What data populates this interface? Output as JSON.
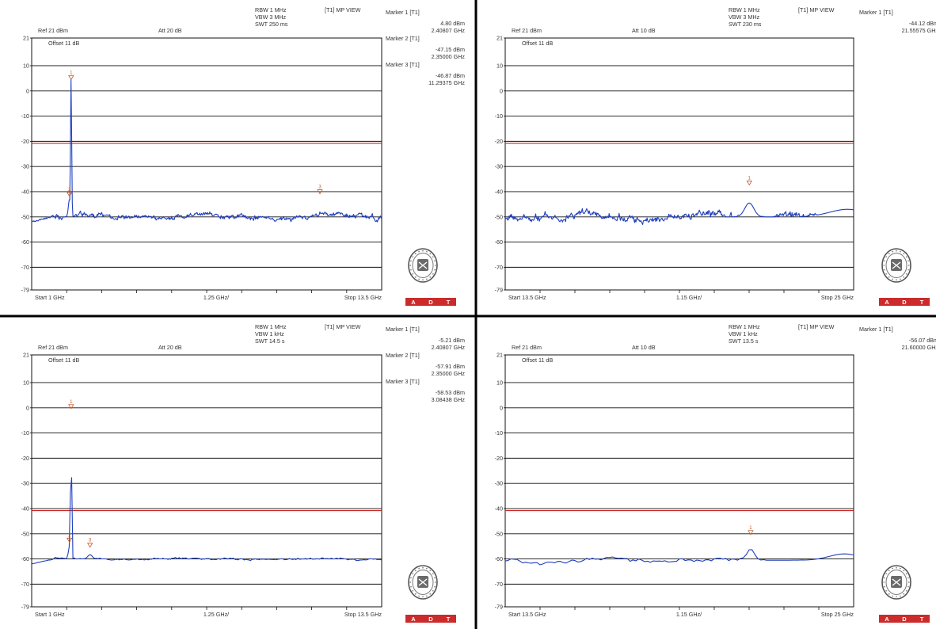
{
  "colors": {
    "trace": "#1f3fbf",
    "limit": "#cc2222",
    "grid": "#111111",
    "marker": "#bf5a2a",
    "logo_bar": "#cc2b2b",
    "divider": "#000000"
  },
  "logo": {
    "brand_letters": [
      "A",
      "D",
      "T"
    ],
    "seal_text": "BUREAU VERITAS 1828"
  },
  "chart_data": [
    {
      "type": "line",
      "title": "",
      "ref_label": "Ref 21 dBm",
      "att_label": "Att 20 dB",
      "offset_label": "Offset 11 dB",
      "settings": [
        "RBW 1 MHz",
        "VBW 3 MHz",
        "SWT 250 ms"
      ],
      "view_label": "[T1] MP VIEW",
      "y_ticks": [
        "21",
        "10",
        "0",
        "-10",
        "-20",
        "-30",
        "-40",
        "-50",
        "-60",
        "-70",
        "-79"
      ],
      "ylim": [
        -79,
        21
      ],
      "x_start": "Start 1 GHz",
      "x_div": "1.25 GHz/",
      "x_stop": "Stop 13.5 GHz",
      "xlim": [
        1,
        13.5
      ],
      "limit_line_dbm": -20.8,
      "markers": [
        {
          "name": "Marker 1 [T1]",
          "level": "4.80 dBm",
          "freq": "2.40807 GHz"
        },
        {
          "name": "Marker 2 [T1]",
          "level": "-47.15 dBm",
          "freq": "2.35000 GHz"
        },
        {
          "name": "Marker 3 [T1]",
          "level": "-46.87 dBm",
          "freq": "11.29375 GHz"
        }
      ],
      "marker_points": [
        {
          "x": 2.408,
          "y": 4.8,
          "label": "1"
        },
        {
          "x": 2.35,
          "y": -41.5,
          "label": "2"
        },
        {
          "x": 11.294,
          "y": -40.5,
          "label": "3"
        }
      ],
      "noise": {
        "floor": -50,
        "amp": 1.2,
        "seed": 11,
        "points": 560,
        "rise_start": -52,
        "rise_len": 0.7
      },
      "peaks": [
        {
          "x": 2.408,
          "y": 4.8,
          "width": 0.02
        },
        {
          "x": 2.35,
          "y": -43,
          "width": 0.04
        },
        {
          "x": 11.294,
          "y": -48,
          "width": 0.02
        }
      ]
    },
    {
      "type": "line",
      "title": "",
      "ref_label": "Ref 21 dBm",
      "att_label": "Att 10 dB",
      "offset_label": "Offset 11 dB",
      "settings": [
        "RBW 1 MHz",
        "VBW 3 MHz",
        "SWT 230 ms"
      ],
      "view_label": "[T1] MP VIEW",
      "y_ticks": [
        "21",
        "10",
        "0",
        "-10",
        "-20",
        "-30",
        "-40",
        "-50",
        "-60",
        "-70",
        "-79"
      ],
      "ylim": [
        -79,
        21
      ],
      "x_start": "Start 13.5 GHz",
      "x_div": "1.15 GHz/",
      "x_stop": "Stop 25 GHz",
      "xlim": [
        13.5,
        25
      ],
      "limit_line_dbm": -20.8,
      "markers": [
        {
          "name": "Marker 1 [T1]",
          "level": "-44.12 dBm",
          "freq": "21.55575 GHz"
        }
      ],
      "marker_points": [
        {
          "x": 21.556,
          "y": -37,
          "label": "1"
        }
      ],
      "noise": {
        "floor": -50,
        "amp": 1.6,
        "seed": 23,
        "points": 560,
        "rise_start": -50,
        "rise_len": 0
      },
      "peaks": [
        {
          "x": 21.556,
          "y": -44.5,
          "width": 0.15
        },
        {
          "x": 24.8,
          "y": -47,
          "width": 0.6
        }
      ]
    },
    {
      "type": "line",
      "title": "",
      "ref_label": "Ref 21 dBm",
      "att_label": "Att 20 dB",
      "offset_label": "Offset 11 dB",
      "settings": [
        "RBW 1 MHz",
        "VBW 1 kHz",
        "SWT 14.5 s"
      ],
      "view_label": "[T1] MP VIEW",
      "y_ticks": [
        "21",
        "10",
        "0",
        "-10",
        "-20",
        "-30",
        "-40",
        "-50",
        "-60",
        "-70",
        "-79"
      ],
      "ylim": [
        -79,
        21
      ],
      "x_start": "Start 1 GHz",
      "x_div": "1.25 GHz/",
      "x_stop": "Stop 13.5 GHz",
      "xlim": [
        1,
        13.5
      ],
      "limit_line_dbm": -40.8,
      "markers": [
        {
          "name": "Marker 1 [T1]",
          "level": "-5.21 dBm",
          "freq": "2.40807 GHz"
        },
        {
          "name": "Marker 2 [T1]",
          "level": "-57.91 dBm",
          "freq": "2.35000 GHz"
        },
        {
          "name": "Marker 3 [T1]",
          "level": "-58.53 dBm",
          "freq": "3.08438 GHz"
        }
      ],
      "marker_points": [
        {
          "x": 2.408,
          "y": 0,
          "label": "1"
        },
        {
          "x": 2.35,
          "y": -53,
          "label": "2"
        },
        {
          "x": 3.084,
          "y": -55,
          "label": "3"
        }
      ],
      "noise": {
        "floor": -60,
        "amp": 0.4,
        "seed": 37,
        "points": 280,
        "rise_start": -62,
        "rise_len": 0.8
      },
      "peaks": [
        {
          "x": 2.408,
          "y": -5.2,
          "width": 0.02
        },
        {
          "x": 2.35,
          "y": -55,
          "width": 0.04
        },
        {
          "x": 3.084,
          "y": -58.3,
          "width": 0.08
        }
      ]
    },
    {
      "type": "line",
      "title": "",
      "ref_label": "Ref 21 dBm",
      "att_label": "Att 10 dB",
      "offset_label": "Offset 11 dB",
      "settings": [
        "RBW 1 MHz",
        "VBW 1 kHz",
        "SWT 13.5 s"
      ],
      "view_label": "[T1] MP VIEW",
      "y_ticks": [
        "21",
        "10",
        "0",
        "-10",
        "-20",
        "-30",
        "-40",
        "-50",
        "-60",
        "-70",
        "-79"
      ],
      "ylim": [
        -79,
        21
      ],
      "x_start": "Start 13.5 GHz",
      "x_div": "1.15 GHz/",
      "x_stop": "Stop 25 GHz",
      "xlim": [
        13.5,
        25
      ],
      "limit_line_dbm": -40.8,
      "markers": [
        {
          "name": "Marker 1 [T1]",
          "level": "-56.07 dBm",
          "freq": "21.60000 GHz"
        }
      ],
      "marker_points": [
        {
          "x": 21.6,
          "y": -50,
          "label": "1"
        }
      ],
      "noise": {
        "floor": -60.5,
        "amp": 1.0,
        "seed": 53,
        "points": 120,
        "rise_start": -61,
        "rise_len": 0
      },
      "peaks": [
        {
          "x": 21.6,
          "y": -56,
          "width": 0.12
        },
        {
          "x": 24.7,
          "y": -58,
          "width": 0.5
        }
      ]
    }
  ]
}
